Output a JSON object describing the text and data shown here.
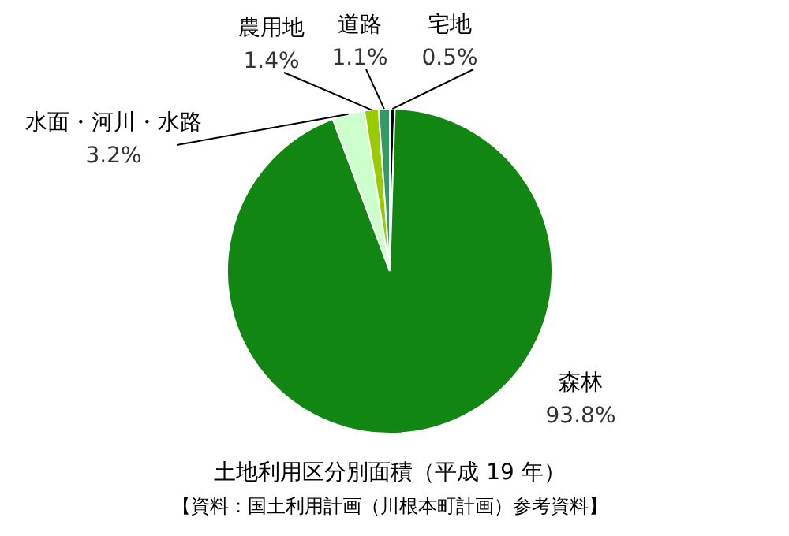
{
  "chart_data": {
    "type": "pie",
    "title": "土地利用区分別面積（平成 19 年）",
    "annotations": [
      "【資料：国土利用計画（川根本町計画）参考資料】"
    ],
    "categories": [
      "宅地",
      "森林",
      "水面・河川・水路",
      "農用地",
      "道路"
    ],
    "values": [
      0.5,
      93.8,
      3.2,
      1.4,
      1.1
    ],
    "colors": [
      "#000000",
      "#128612",
      "#ccffcc",
      "#99cc00",
      "#339966"
    ],
    "value_labels": [
      "0.5%",
      "93.8%",
      "3.2%",
      "1.4%",
      "1.1%"
    ]
  }
}
